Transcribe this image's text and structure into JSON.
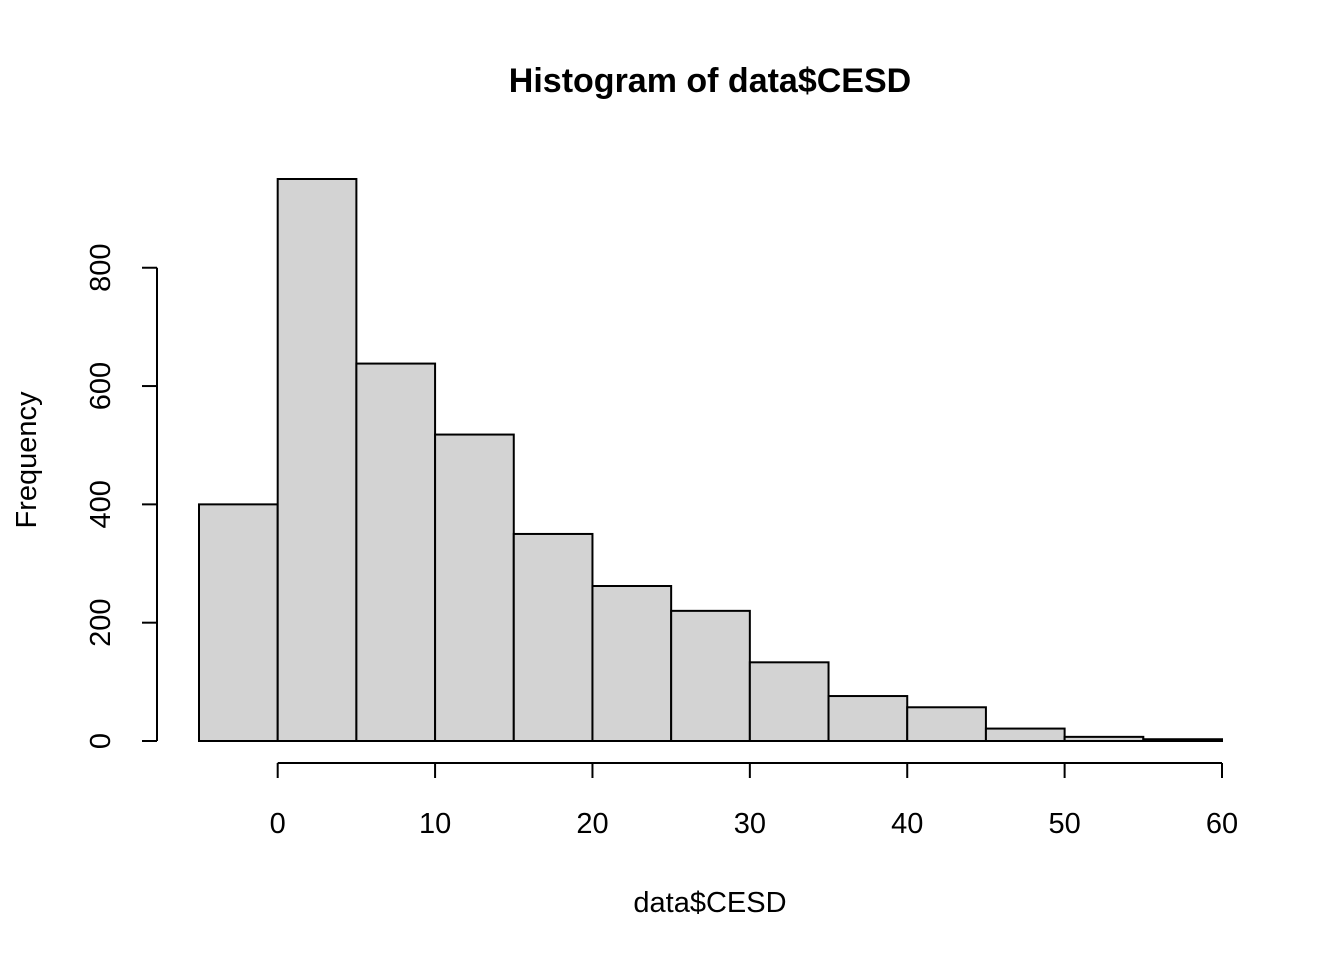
{
  "chart_data": {
    "type": "bar",
    "title": "Histogram of data$CESD",
    "xlabel": "data$CESD",
    "ylabel": "Frequency",
    "bin_edges": [
      -5,
      0,
      5,
      10,
      15,
      20,
      25,
      30,
      35,
      40,
      45,
      50,
      55,
      60
    ],
    "values": [
      400,
      950,
      638,
      518,
      350,
      262,
      220,
      133,
      76,
      57,
      21,
      7,
      3
    ],
    "xlim": [
      -5,
      60
    ],
    "ylim": [
      0,
      950
    ],
    "x_ticks": [
      0,
      10,
      20,
      30,
      40,
      50,
      60
    ],
    "y_ticks": [
      0,
      200,
      400,
      600,
      800
    ],
    "x_tick_labels": [
      "0",
      "10",
      "20",
      "30",
      "40",
      "50",
      "60"
    ],
    "y_tick_labels": [
      "0",
      "200",
      "400",
      "600",
      "800"
    ],
    "grid": false,
    "legend": "none"
  }
}
